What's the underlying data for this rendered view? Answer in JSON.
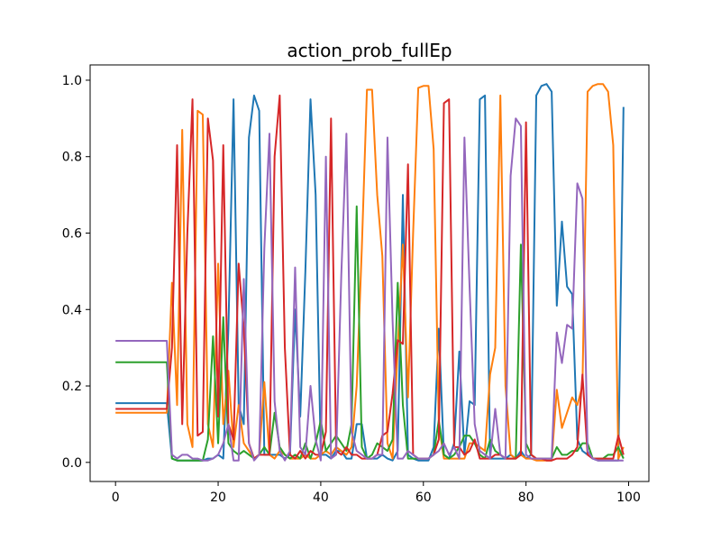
{
  "chart_data": {
    "type": "line",
    "title": "action_prob_fullEp",
    "xlabel": "",
    "ylabel": "",
    "xlim": [
      -4.95,
      103.95
    ],
    "ylim": [
      -0.05,
      1.04
    ],
    "xticks": [
      0,
      20,
      40,
      60,
      80,
      100
    ],
    "xtick_labels": [
      "0",
      "20",
      "40",
      "60",
      "80",
      "100"
    ],
    "yticks": [
      0.0,
      0.2,
      0.4,
      0.6,
      0.8,
      1.0
    ],
    "ytick_labels": [
      "0.0",
      "0.2",
      "0.4",
      "0.6",
      "0.8",
      "1.0"
    ],
    "grid": false,
    "legend": "none",
    "x": [
      0,
      1,
      2,
      3,
      4,
      5,
      6,
      7,
      8,
      9,
      10,
      11,
      12,
      13,
      14,
      15,
      16,
      17,
      18,
      19,
      20,
      21,
      22,
      23,
      24,
      25,
      26,
      27,
      28,
      29,
      30,
      31,
      32,
      33,
      34,
      35,
      36,
      37,
      38,
      39,
      40,
      41,
      42,
      43,
      44,
      45,
      46,
      47,
      48,
      49,
      50,
      51,
      52,
      53,
      54,
      55,
      56,
      57,
      58,
      59,
      60,
      61,
      62,
      63,
      64,
      65,
      66,
      67,
      68,
      69,
      70,
      71,
      72,
      73,
      74,
      75,
      76,
      77,
      78,
      79,
      80,
      81,
      82,
      83,
      84,
      85,
      86,
      87,
      88,
      89,
      90,
      91,
      92,
      93,
      94,
      95,
      96,
      97,
      98,
      99
    ],
    "series": [
      {
        "color": "#1f77b4",
        "values": [
          0.155,
          0.155,
          0.155,
          0.155,
          0.155,
          0.155,
          0.155,
          0.155,
          0.155,
          0.155,
          0.155,
          0.01,
          0.005,
          0.005,
          0.005,
          0.005,
          0.005,
          0.005,
          0.01,
          0.01,
          0.02,
          0.01,
          0.35,
          0.95,
          0.15,
          0.1,
          0.85,
          0.96,
          0.92,
          0.02,
          0.02,
          0.02,
          0.02,
          0.01,
          0.02,
          0.4,
          0.12,
          0.5,
          0.95,
          0.7,
          0.02,
          0.02,
          0.01,
          0.03,
          0.03,
          0.01,
          0.01,
          0.1,
          0.1,
          0.01,
          0.01,
          0.01,
          0.02,
          0.01,
          0.005,
          0.03,
          0.7,
          0.02,
          0.01,
          0.005,
          0.005,
          0.005,
          0.04,
          0.35,
          0.02,
          0.01,
          0.05,
          0.29,
          0.02,
          0.16,
          0.15,
          0.95,
          0.96,
          0.01,
          0.01,
          0.01,
          0.01,
          0.02,
          0.01,
          0.03,
          0.01,
          0.02,
          0.96,
          0.985,
          0.99,
          0.97,
          0.41,
          0.63,
          0.46,
          0.44,
          0.06,
          0.03,
          0.02,
          0.01,
          0.005,
          0.005,
          0.005,
          0.005,
          0.005,
          0.93
        ]
      },
      {
        "color": "#ff7f0e",
        "values": [
          0.13,
          0.13,
          0.13,
          0.13,
          0.13,
          0.13,
          0.13,
          0.13,
          0.13,
          0.13,
          0.13,
          0.47,
          0.15,
          0.87,
          0.1,
          0.04,
          0.92,
          0.91,
          0.1,
          0.04,
          0.52,
          0.1,
          0.24,
          0.04,
          0.15,
          0.05,
          0.03,
          0.01,
          0.02,
          0.21,
          0.02,
          0.01,
          0.03,
          0.02,
          0.01,
          0.01,
          0.01,
          0.02,
          0.01,
          0.01,
          0.02,
          0.03,
          0.02,
          0.04,
          0.03,
          0.02,
          0.04,
          0.2,
          0.56,
          0.975,
          0.975,
          0.7,
          0.54,
          0.05,
          0.01,
          0.3,
          0.57,
          0.17,
          0.6,
          0.98,
          0.985,
          0.985,
          0.82,
          0.1,
          0.01,
          0.01,
          0.01,
          0.01,
          0.01,
          0.05,
          0.05,
          0.04,
          0.03,
          0.23,
          0.3,
          0.96,
          0.2,
          0.02,
          0.01,
          0.02,
          0.01,
          0.01,
          0.005,
          0.005,
          0.005,
          0.005,
          0.19,
          0.09,
          0.13,
          0.17,
          0.15,
          0.2,
          0.97,
          0.985,
          0.99,
          0.99,
          0.97,
          0.83,
          0.01,
          0.04
        ]
      },
      {
        "color": "#2ca02c",
        "values": [
          0.262,
          0.262,
          0.262,
          0.262,
          0.262,
          0.262,
          0.262,
          0.262,
          0.262,
          0.262,
          0.262,
          0.01,
          0.005,
          0.005,
          0.005,
          0.005,
          0.005,
          0.005,
          0.06,
          0.33,
          0.05,
          0.38,
          0.05,
          0.03,
          0.02,
          0.03,
          0.02,
          0.01,
          0.02,
          0.04,
          0.02,
          0.13,
          0.04,
          0.02,
          0.01,
          0.02,
          0.01,
          0.05,
          0.01,
          0.05,
          0.11,
          0.03,
          0.05,
          0.07,
          0.05,
          0.03,
          0.1,
          0.67,
          0.04,
          0.01,
          0.02,
          0.05,
          0.04,
          0.03,
          0.06,
          0.47,
          0.15,
          0.01,
          0.01,
          0.01,
          0.01,
          0.01,
          0.02,
          0.11,
          0.02,
          0.01,
          0.02,
          0.04,
          0.07,
          0.07,
          0.05,
          0.02,
          0.01,
          0.06,
          0.03,
          0.02,
          0.01,
          0.01,
          0.01,
          0.57,
          0.05,
          0.02,
          0.01,
          0.01,
          0.01,
          0.01,
          0.04,
          0.02,
          0.02,
          0.03,
          0.03,
          0.05,
          0.05,
          0.01,
          0.01,
          0.01,
          0.02,
          0.02,
          0.04,
          0.01
        ]
      },
      {
        "color": "#d62728",
        "values": [
          0.14,
          0.14,
          0.14,
          0.14,
          0.14,
          0.14,
          0.14,
          0.14,
          0.14,
          0.14,
          0.14,
          0.3,
          0.83,
          0.1,
          0.6,
          0.95,
          0.07,
          0.08,
          0.9,
          0.79,
          0.12,
          0.83,
          0.1,
          0.06,
          0.52,
          0.35,
          0.05,
          0.01,
          0.02,
          0.02,
          0.02,
          0.8,
          0.96,
          0.3,
          0.02,
          0.01,
          0.03,
          0.01,
          0.03,
          0.02,
          0.02,
          0.08,
          0.9,
          0.03,
          0.02,
          0.04,
          0.02,
          0.02,
          0.01,
          0.01,
          0.01,
          0.02,
          0.07,
          0.08,
          0.18,
          0.32,
          0.31,
          0.78,
          0.02,
          0.01,
          0.01,
          0.01,
          0.02,
          0.06,
          0.94,
          0.95,
          0.04,
          0.04,
          0.02,
          0.03,
          0.06,
          0.01,
          0.01,
          0.01,
          0.02,
          0.02,
          0.01,
          0.01,
          0.01,
          0.02,
          0.89,
          0.02,
          0.01,
          0.01,
          0.005,
          0.005,
          0.01,
          0.01,
          0.01,
          0.02,
          0.04,
          0.23,
          0.02,
          0.01,
          0.01,
          0.01,
          0.01,
          0.01,
          0.07,
          0.02
        ]
      },
      {
        "color": "#9467bd",
        "values": [
          0.318,
          0.318,
          0.318,
          0.318,
          0.318,
          0.318,
          0.318,
          0.318,
          0.318,
          0.318,
          0.318,
          0.02,
          0.01,
          0.02,
          0.02,
          0.01,
          0.01,
          0.005,
          0.005,
          0.01,
          0.02,
          0.05,
          0.1,
          0.005,
          0.005,
          0.48,
          0.05,
          0.005,
          0.02,
          0.56,
          0.86,
          0.16,
          0.03,
          0.005,
          0.03,
          0.51,
          0.04,
          0.02,
          0.2,
          0.06,
          0.005,
          0.8,
          0.01,
          0.02,
          0.49,
          0.86,
          0.08,
          0.03,
          0.02,
          0.01,
          0.01,
          0.02,
          0.02,
          0.85,
          0.37,
          0.01,
          0.01,
          0.03,
          0.02,
          0.01,
          0.01,
          0.01,
          0.02,
          0.03,
          0.05,
          0.02,
          0.04,
          0.01,
          0.85,
          0.46,
          0.1,
          0.03,
          0.02,
          0.01,
          0.14,
          0.02,
          0.01,
          0.75,
          0.9,
          0.88,
          0.02,
          0.01,
          0.01,
          0.01,
          0.01,
          0.01,
          0.34,
          0.26,
          0.36,
          0.35,
          0.73,
          0.69,
          0.03,
          0.01,
          0.005,
          0.005,
          0.005,
          0.005,
          0.005,
          0.005
        ]
      }
    ]
  }
}
